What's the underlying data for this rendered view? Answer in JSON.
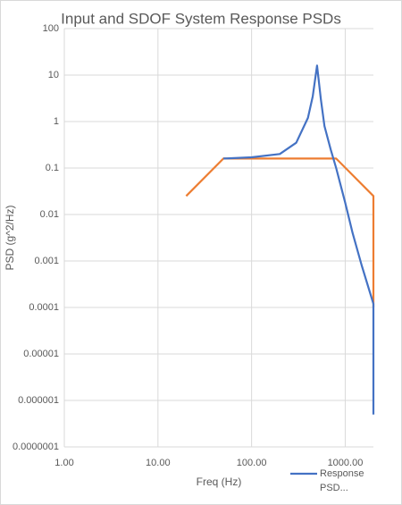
{
  "chart_data": {
    "type": "line",
    "title": "Input and SDOF System Response  PSDs",
    "x_label": "Freq (Hz)",
    "y_label": "PSD (g^2/Hz)",
    "x_log": true,
    "y_log": true,
    "grid": true,
    "legend": "bottom-right",
    "xlim": [
      1,
      2000
    ],
    "ylim": [
      1e-07,
      100
    ],
    "xticks": [
      {
        "value": 1,
        "label": "1.00"
      },
      {
        "value": 10,
        "label": "10.00"
      },
      {
        "value": 100,
        "label": "100.00"
      },
      {
        "value": 1000,
        "label": "1000.00"
      }
    ],
    "yticks": [
      100,
      10,
      1,
      0.1,
      0.01,
      0.001,
      0.0001,
      1e-05,
      1e-06,
      {
        "value": 1e-07,
        "label": "0.0000001"
      }
    ],
    "series": [
      {
        "name": "Response PSD...",
        "color": "#4472c4",
        "x": [
          50,
          100,
          200,
          300,
          400,
          450,
          500,
          550,
          600,
          700,
          800,
          1000,
          1200,
          1500,
          2000,
          2000
        ],
        "values": [
          0.16,
          0.17,
          0.2,
          0.35,
          1.2,
          3.5,
          16,
          3,
          0.8,
          0.25,
          0.1,
          0.018,
          0.004,
          0.0008,
          0.00012,
          5e-07
        ]
      },
      {
        "color": "#ed7d31",
        "x": [
          20,
          50,
          800,
          2000,
          2000
        ],
        "values": [
          0.025,
          0.16,
          0.16,
          0.025,
          0.0001
        ]
      }
    ]
  }
}
